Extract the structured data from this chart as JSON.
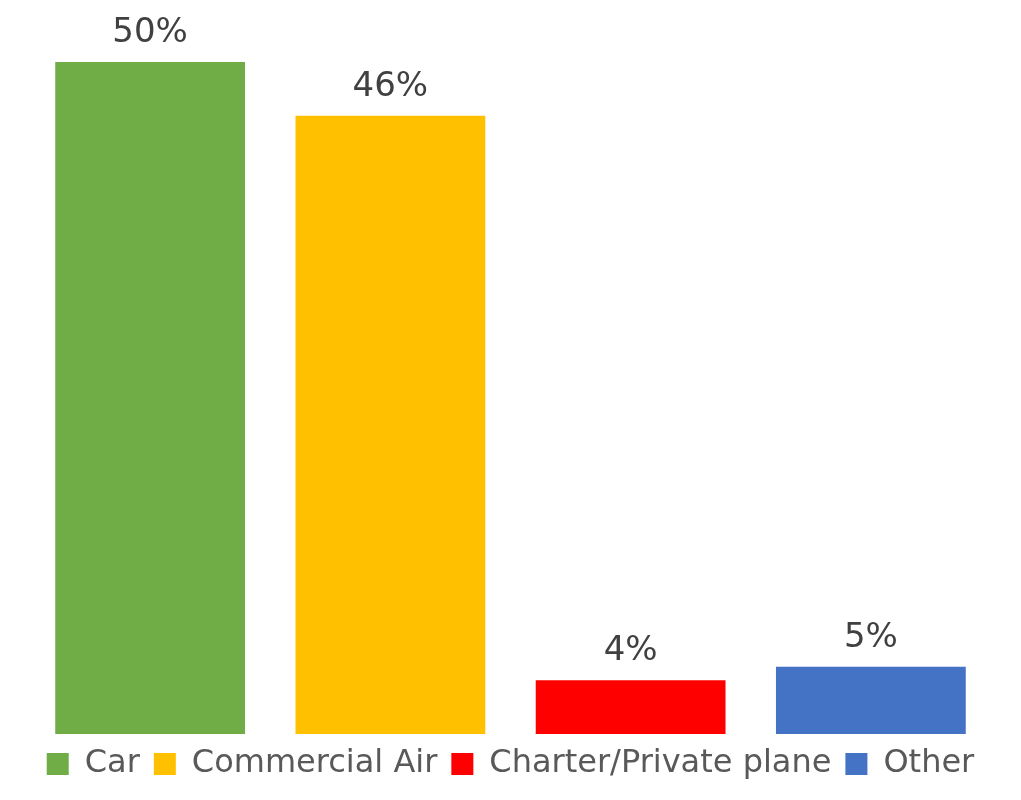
{
  "chart_data": {
    "type": "bar",
    "categories": [
      null
    ],
    "legend": "bottom",
    "series": [
      {
        "name": "Car",
        "color": "#70ad47",
        "values": [
          50
        ],
        "value_labels": [
          "50%"
        ]
      },
      {
        "name": "Commercial Air",
        "color": "#ffc000",
        "values": [
          46
        ],
        "value_labels": [
          "46%"
        ]
      },
      {
        "name": "Charter/Private plane",
        "color": "#ff0000",
        "values": [
          4
        ],
        "value_labels": [
          "4%"
        ]
      },
      {
        "name": "Other",
        "color": "#4472c4",
        "values": [
          5
        ],
        "value_labels": [
          "5%"
        ]
      }
    ]
  }
}
